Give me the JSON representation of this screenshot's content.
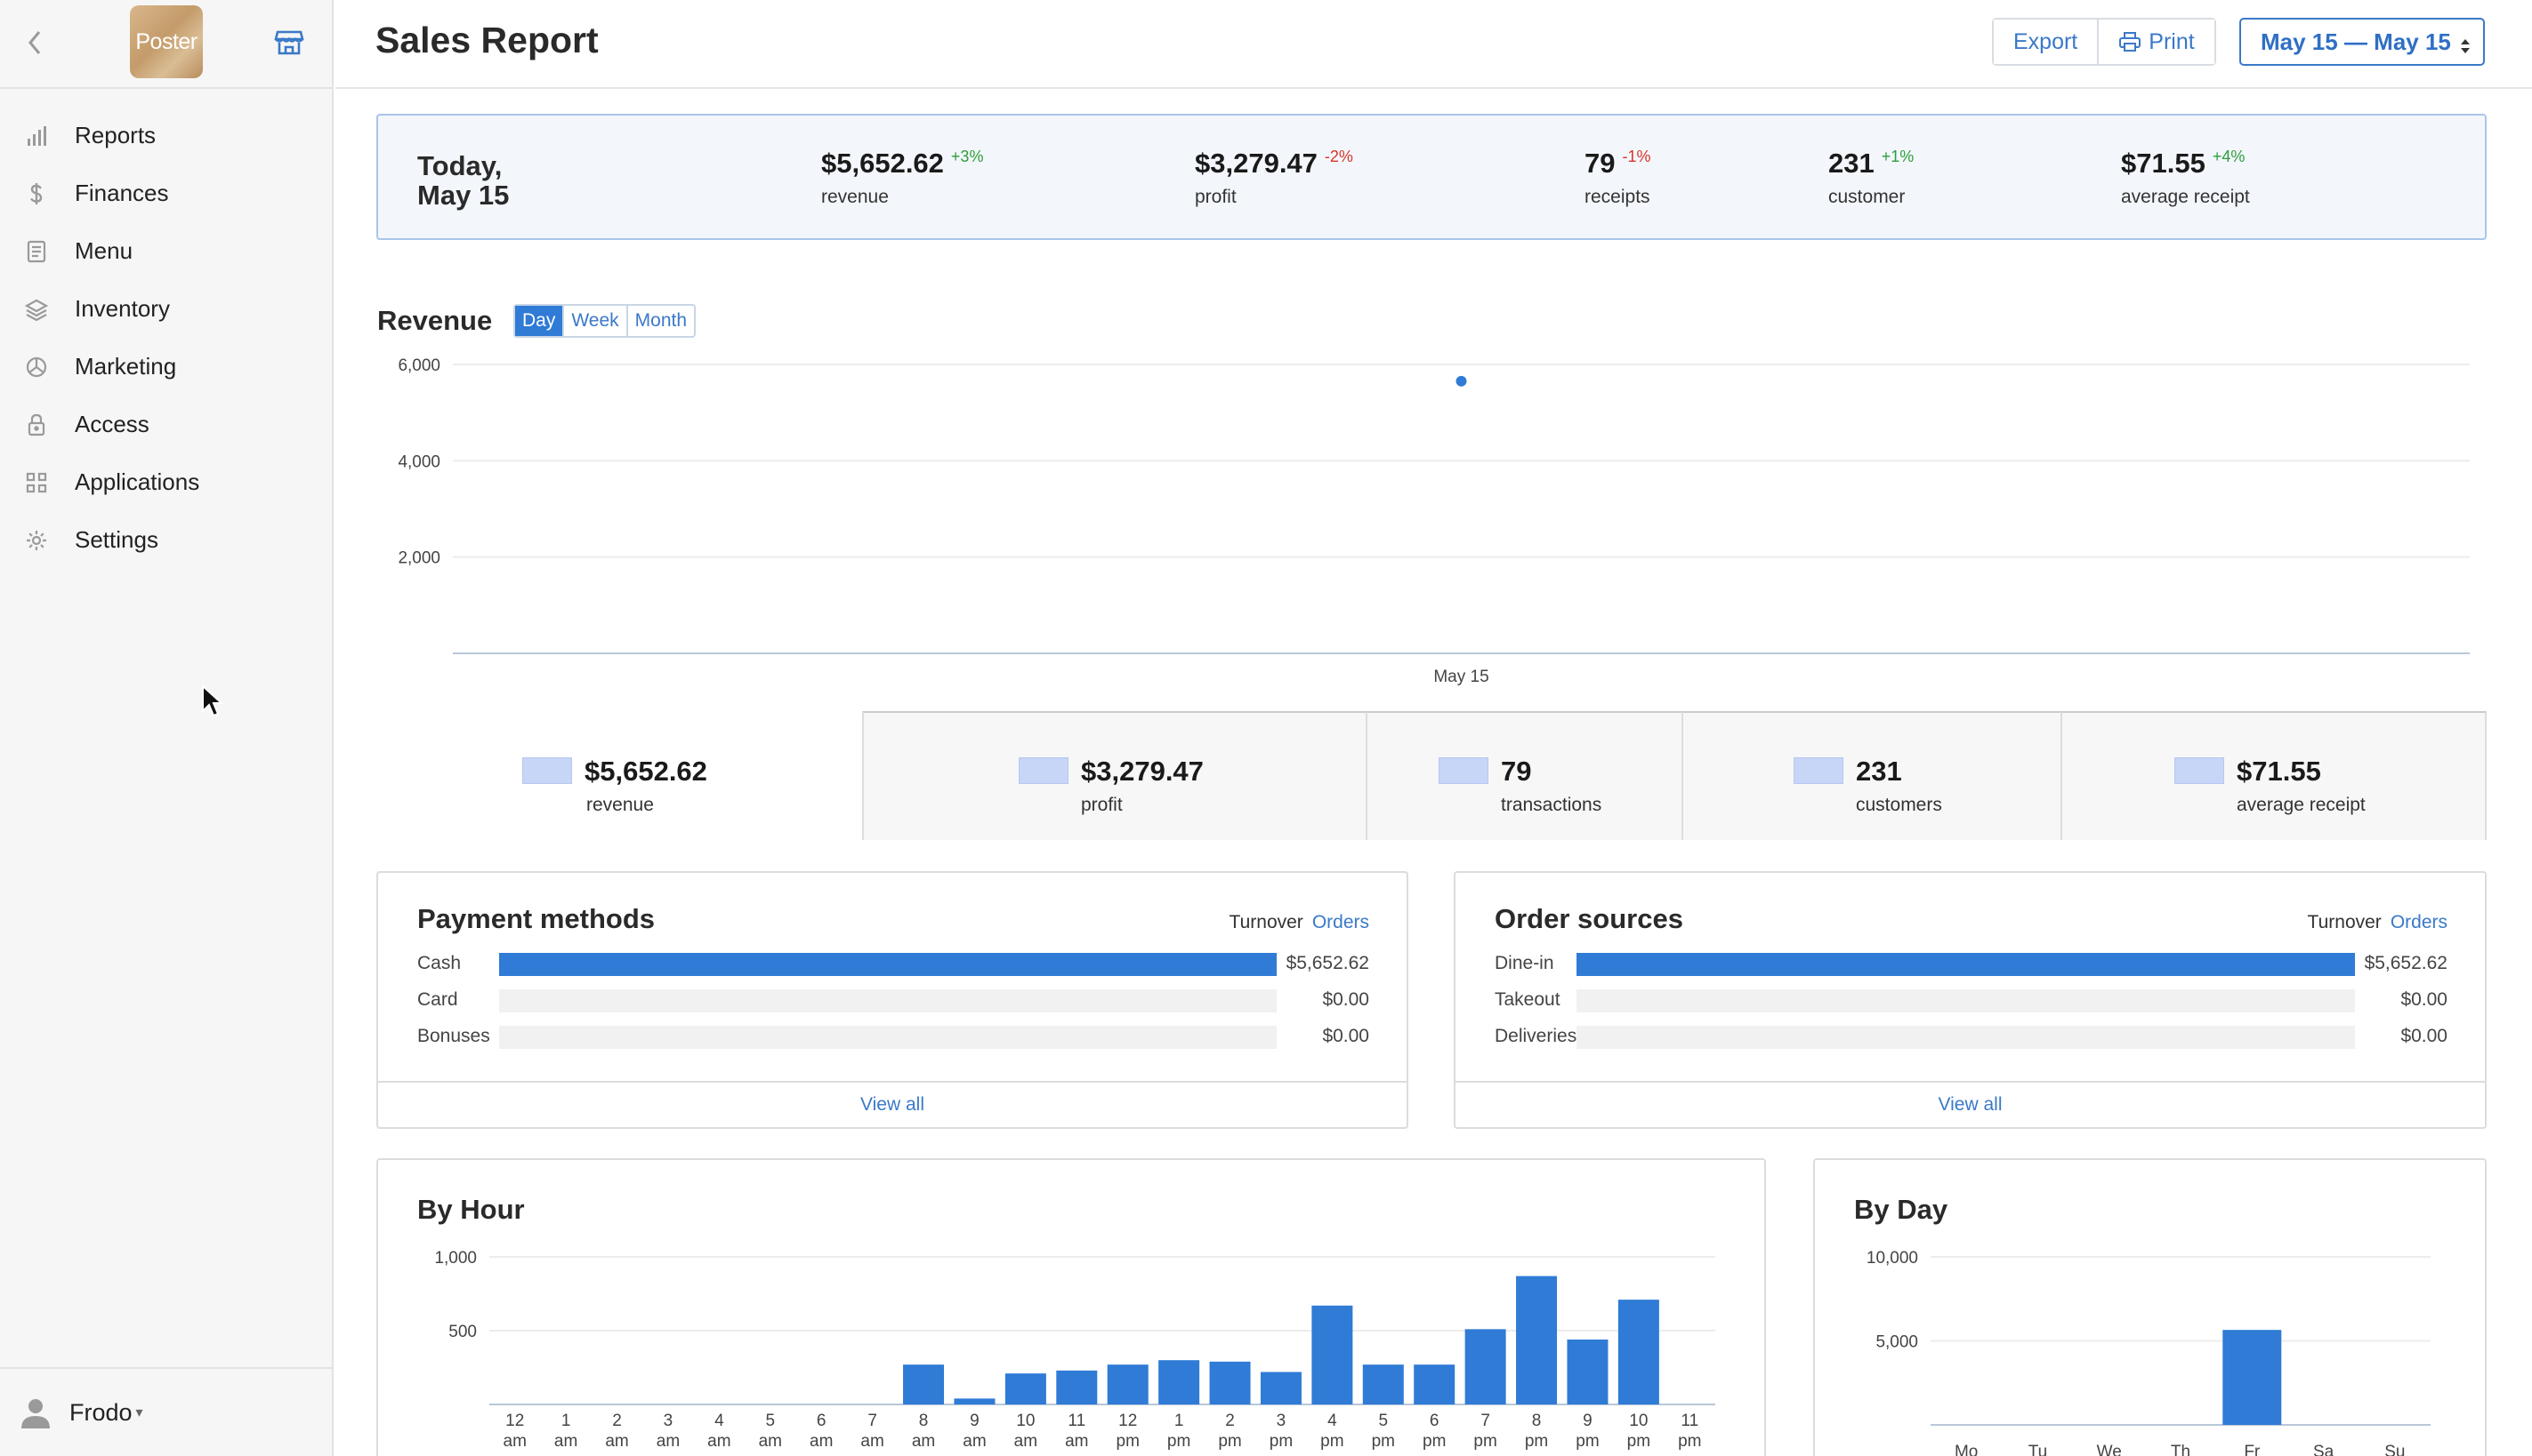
{
  "sidebar": {
    "logo_text": "Poster",
    "items": [
      {
        "label": "Reports",
        "icon": "bar-chart-icon"
      },
      {
        "label": "Finances",
        "icon": "dollar-icon"
      },
      {
        "label": "Menu",
        "icon": "document-icon"
      },
      {
        "label": "Inventory",
        "icon": "layers-icon"
      },
      {
        "label": "Marketing",
        "icon": "pie-icon"
      },
      {
        "label": "Access",
        "icon": "lock-icon"
      },
      {
        "label": "Applications",
        "icon": "grid-icon"
      },
      {
        "label": "Settings",
        "icon": "gear-icon"
      }
    ],
    "user": {
      "name": "Frodo",
      "caret": "▾"
    }
  },
  "header": {
    "title": "Sales Report",
    "export_label": "Export",
    "print_label": "Print",
    "date_range": "May 15 — May 15"
  },
  "summary": {
    "date_line1": "Today,",
    "date_line2": "May 15",
    "items": [
      {
        "value": "$5,652.62",
        "change": "+3%",
        "label": "revenue"
      },
      {
        "value": "$3,279.47",
        "change": "-2%",
        "label": "profit"
      },
      {
        "value": "79",
        "change": "-1%",
        "label": "receipts"
      },
      {
        "value": "231",
        "change": "+1%",
        "label": "customer"
      },
      {
        "value": "$71.55",
        "change": "+4%",
        "label": "average receipt"
      }
    ]
  },
  "revenue": {
    "title": "Revenue",
    "tabs": [
      "Day",
      "Week",
      "Month"
    ],
    "active_tab": "Day"
  },
  "metrics": [
    {
      "value": "$5,652.62",
      "label": "revenue"
    },
    {
      "value": "$3,279.47",
      "label": "profit"
    },
    {
      "value": "79",
      "label": "transactions"
    },
    {
      "value": "231",
      "label": "customers"
    },
    {
      "value": "$71.55",
      "label": "average receipt"
    }
  ],
  "payment_methods": {
    "title": "Payment methods",
    "toggle_a": "Turnover",
    "toggle_b": "Orders",
    "rows": [
      {
        "label": "Cash",
        "value": "$5,652.62",
        "share": 1.0
      },
      {
        "label": "Card",
        "value": "$0.00",
        "share": 0
      },
      {
        "label": "Bonuses",
        "value": "$0.00",
        "share": 0
      }
    ],
    "footer": "View all"
  },
  "order_sources": {
    "title": "Order sources",
    "toggle_a": "Turnover",
    "toggle_b": "Orders",
    "rows": [
      {
        "label": "Dine-in",
        "value": "$5,652.62",
        "share": 1.0
      },
      {
        "label": "Takeout",
        "value": "$0.00",
        "share": 0
      },
      {
        "label": "Deliveries",
        "value": "$0.00",
        "share": 0
      }
    ],
    "footer": "View all"
  },
  "colors": {
    "accent": "#2f7bd6",
    "swatch": "#c7d6f7",
    "up": "#2e9d3a",
    "down": "#d9342b"
  },
  "chart_data": [
    {
      "type": "scatter",
      "title": "Revenue",
      "x": [
        "May 15"
      ],
      "series": [
        {
          "values": [
            5652.62
          ]
        }
      ],
      "y_ticks": [
        "2,000",
        "4,000",
        "6,000"
      ],
      "ylim": [
        0,
        6000
      ],
      "grid": true
    },
    {
      "type": "bar",
      "title": "By Hour",
      "categories": [
        "12 am",
        "1 am",
        "2 am",
        "3 am",
        "4 am",
        "5 am",
        "6 am",
        "7 am",
        "8 am",
        "9 am",
        "10 am",
        "11 am",
        "12 pm",
        "1 pm",
        "2 pm",
        "3 pm",
        "4 pm",
        "5 pm",
        "6 pm",
        "7 pm",
        "8 pm",
        "9 pm",
        "10 pm",
        "11 pm"
      ],
      "values": [
        0,
        0,
        0,
        0,
        0,
        0,
        0,
        0,
        270,
        40,
        210,
        230,
        270,
        300,
        290,
        220,
        670,
        270,
        270,
        510,
        870,
        440,
        710,
        0
      ],
      "y_ticks": [
        "500",
        "1,000"
      ],
      "ylim": [
        0,
        1000
      ],
      "grid": true
    },
    {
      "type": "bar",
      "title": "By Day",
      "categories": [
        "Mo",
        "Tu",
        "We",
        "Th",
        "Fr",
        "Sa",
        "Su"
      ],
      "values": [
        0,
        0,
        0,
        0,
        5652.62,
        0,
        0
      ],
      "y_ticks": [
        "5,000",
        "10,000"
      ],
      "ylim": [
        0,
        10000
      ],
      "grid": true
    }
  ]
}
